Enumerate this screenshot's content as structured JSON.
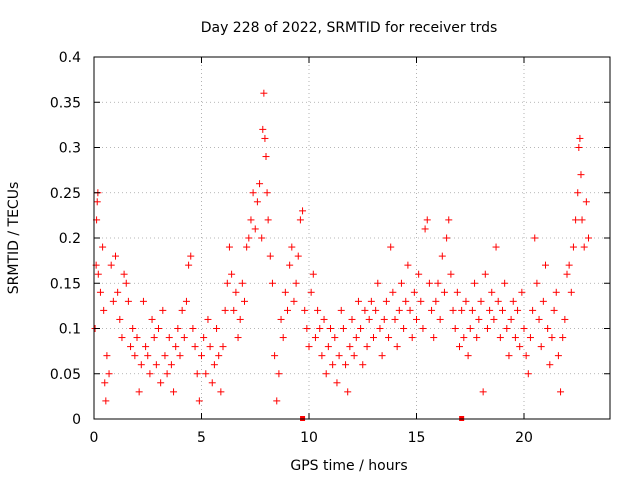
{
  "chart_data": {
    "type": "scatter",
    "title": "Day 228 of 2022, SRMTID for receiver trds",
    "xlabel": "GPS time / hours",
    "ylabel": "SRMTID / TECUs",
    "xlim": [
      0,
      24
    ],
    "ylim": [
      0,
      0.4
    ],
    "xticks": [
      0,
      5,
      10,
      15,
      20
    ],
    "xtick_labels": [
      "0",
      "5",
      "10",
      "15",
      "20"
    ],
    "yticks": [
      0,
      0.05,
      0.1,
      0.15,
      0.2,
      0.25,
      0.3,
      0.35,
      0.4
    ],
    "ytick_labels": [
      "0",
      "0.05",
      "0.1",
      "0.15",
      "0.2",
      "0.25",
      "0.3",
      "0.35",
      "0.4"
    ],
    "grid": true,
    "marker": "+",
    "marker_color": "#ff0000",
    "series": [
      {
        "name": "trds",
        "points": [
          [
            0.05,
            0.1
          ],
          [
            0.1,
            0.17
          ],
          [
            0.12,
            0.22
          ],
          [
            0.15,
            0.24
          ],
          [
            0.18,
            0.25
          ],
          [
            0.2,
            0.16
          ],
          [
            0.3,
            0.14
          ],
          [
            0.4,
            0.19
          ],
          [
            0.45,
            0.12
          ],
          [
            0.5,
            0.04
          ],
          [
            0.55,
            0.02
          ],
          [
            0.6,
            0.07
          ],
          [
            0.7,
            0.05
          ],
          [
            0.8,
            0.17
          ],
          [
            0.9,
            0.13
          ],
          [
            1.0,
            0.18
          ],
          [
            1.1,
            0.14
          ],
          [
            1.2,
            0.11
          ],
          [
            1.3,
            0.09
          ],
          [
            1.4,
            0.16
          ],
          [
            1.5,
            0.15
          ],
          [
            1.6,
            0.13
          ],
          [
            1.7,
            0.08
          ],
          [
            1.8,
            0.1
          ],
          [
            1.9,
            0.07
          ],
          [
            2.0,
            0.09
          ],
          [
            2.1,
            0.03
          ],
          [
            2.2,
            0.06
          ],
          [
            2.3,
            0.13
          ],
          [
            2.4,
            0.08
          ],
          [
            2.5,
            0.07
          ],
          [
            2.6,
            0.05
          ],
          [
            2.7,
            0.11
          ],
          [
            2.8,
            0.09
          ],
          [
            2.9,
            0.06
          ],
          [
            3.0,
            0.1
          ],
          [
            3.1,
            0.04
          ],
          [
            3.2,
            0.12
          ],
          [
            3.3,
            0.07
          ],
          [
            3.4,
            0.05
          ],
          [
            3.5,
            0.09
          ],
          [
            3.6,
            0.06
          ],
          [
            3.7,
            0.03
          ],
          [
            3.8,
            0.08
          ],
          [
            3.9,
            0.1
          ],
          [
            4.0,
            0.07
          ],
          [
            4.1,
            0.12
          ],
          [
            4.2,
            0.09
          ],
          [
            4.3,
            0.13
          ],
          [
            4.4,
            0.17
          ],
          [
            4.5,
            0.18
          ],
          [
            4.6,
            0.1
          ],
          [
            4.7,
            0.08
          ],
          [
            4.8,
            0.05
          ],
          [
            4.9,
            0.02
          ],
          [
            5.0,
            0.07
          ],
          [
            5.1,
            0.09
          ],
          [
            5.2,
            0.05
          ],
          [
            5.3,
            0.11
          ],
          [
            5.4,
            0.08
          ],
          [
            5.5,
            0.04
          ],
          [
            5.6,
            0.06
          ],
          [
            5.7,
            0.1
          ],
          [
            5.8,
            0.07
          ],
          [
            5.9,
            0.03
          ],
          [
            6.0,
            0.08
          ],
          [
            6.1,
            0.12
          ],
          [
            6.2,
            0.15
          ],
          [
            6.3,
            0.19
          ],
          [
            6.4,
            0.16
          ],
          [
            6.5,
            0.12
          ],
          [
            6.6,
            0.14
          ],
          [
            6.7,
            0.09
          ],
          [
            6.8,
            0.11
          ],
          [
            6.9,
            0.15
          ],
          [
            7.0,
            0.13
          ],
          [
            7.1,
            0.19
          ],
          [
            7.2,
            0.2
          ],
          [
            7.3,
            0.22
          ],
          [
            7.4,
            0.25
          ],
          [
            7.5,
            0.21
          ],
          [
            7.6,
            0.24
          ],
          [
            7.7,
            0.26
          ],
          [
            7.8,
            0.2
          ],
          [
            7.85,
            0.32
          ],
          [
            7.9,
            0.36
          ],
          [
            7.95,
            0.31
          ],
          [
            8.0,
            0.29
          ],
          [
            8.05,
            0.25
          ],
          [
            8.1,
            0.22
          ],
          [
            8.2,
            0.18
          ],
          [
            8.3,
            0.15
          ],
          [
            8.4,
            0.07
          ],
          [
            8.5,
            0.02
          ],
          [
            8.6,
            0.05
          ],
          [
            8.7,
            0.11
          ],
          [
            8.8,
            0.09
          ],
          [
            8.9,
            0.14
          ],
          [
            9.0,
            0.12
          ],
          [
            9.1,
            0.17
          ],
          [
            9.2,
            0.19
          ],
          [
            9.3,
            0.13
          ],
          [
            9.4,
            0.15
          ],
          [
            9.5,
            0.18
          ],
          [
            9.6,
            0.22
          ],
          [
            9.7,
            0.23
          ],
          [
            9.8,
            0.12
          ],
          [
            9.9,
            0.1
          ],
          [
            10.0,
            0.08
          ],
          [
            10.1,
            0.14
          ],
          [
            10.2,
            0.16
          ],
          [
            10.3,
            0.09
          ],
          [
            10.4,
            0.12
          ],
          [
            10.5,
            0.1
          ],
          [
            10.6,
            0.07
          ],
          [
            10.7,
            0.11
          ],
          [
            10.8,
            0.05
          ],
          [
            10.9,
            0.08
          ],
          [
            11.0,
            0.1
          ],
          [
            11.1,
            0.06
          ],
          [
            11.2,
            0.09
          ],
          [
            11.3,
            0.04
          ],
          [
            11.4,
            0.07
          ],
          [
            11.5,
            0.12
          ],
          [
            11.6,
            0.1
          ],
          [
            11.7,
            0.06
          ],
          [
            11.8,
            0.03
          ],
          [
            11.9,
            0.08
          ],
          [
            12.0,
            0.11
          ],
          [
            12.1,
            0.07
          ],
          [
            12.2,
            0.09
          ],
          [
            12.3,
            0.13
          ],
          [
            12.4,
            0.1
          ],
          [
            12.5,
            0.06
          ],
          [
            12.6,
            0.12
          ],
          [
            12.7,
            0.08
          ],
          [
            12.8,
            0.11
          ],
          [
            12.9,
            0.13
          ],
          [
            13.0,
            0.09
          ],
          [
            13.1,
            0.12
          ],
          [
            13.2,
            0.15
          ],
          [
            13.3,
            0.1
          ],
          [
            13.4,
            0.07
          ],
          [
            13.5,
            0.11
          ],
          [
            13.6,
            0.13
          ],
          [
            13.7,
            0.09
          ],
          [
            13.8,
            0.19
          ],
          [
            13.9,
            0.14
          ],
          [
            14.0,
            0.11
          ],
          [
            14.1,
            0.08
          ],
          [
            14.2,
            0.12
          ],
          [
            14.3,
            0.15
          ],
          [
            14.4,
            0.1
          ],
          [
            14.5,
            0.13
          ],
          [
            14.6,
            0.17
          ],
          [
            14.7,
            0.12
          ],
          [
            14.8,
            0.09
          ],
          [
            14.9,
            0.14
          ],
          [
            15.0,
            0.11
          ],
          [
            15.1,
            0.16
          ],
          [
            15.2,
            0.13
          ],
          [
            15.3,
            0.1
          ],
          [
            15.4,
            0.21
          ],
          [
            15.5,
            0.22
          ],
          [
            15.6,
            0.15
          ],
          [
            15.7,
            0.12
          ],
          [
            15.8,
            0.09
          ],
          [
            15.9,
            0.13
          ],
          [
            16.0,
            0.15
          ],
          [
            16.1,
            0.11
          ],
          [
            16.2,
            0.18
          ],
          [
            16.3,
            0.14
          ],
          [
            16.4,
            0.2
          ],
          [
            16.5,
            0.22
          ],
          [
            16.6,
            0.16
          ],
          [
            16.7,
            0.12
          ],
          [
            16.8,
            0.1
          ],
          [
            16.9,
            0.14
          ],
          [
            17.0,
            0.08
          ],
          [
            17.1,
            0.12
          ],
          [
            17.2,
            0.09
          ],
          [
            17.3,
            0.13
          ],
          [
            17.4,
            0.07
          ],
          [
            17.5,
            0.1
          ],
          [
            17.6,
            0.12
          ],
          [
            17.7,
            0.15
          ],
          [
            17.8,
            0.09
          ],
          [
            17.9,
            0.11
          ],
          [
            18.0,
            0.13
          ],
          [
            18.1,
            0.03
          ],
          [
            18.2,
            0.16
          ],
          [
            18.3,
            0.1
          ],
          [
            18.4,
            0.12
          ],
          [
            18.5,
            0.14
          ],
          [
            18.6,
            0.11
          ],
          [
            18.7,
            0.19
          ],
          [
            18.8,
            0.13
          ],
          [
            18.9,
            0.09
          ],
          [
            19.0,
            0.12
          ],
          [
            19.1,
            0.15
          ],
          [
            19.2,
            0.1
          ],
          [
            19.3,
            0.07
          ],
          [
            19.4,
            0.11
          ],
          [
            19.5,
            0.13
          ],
          [
            19.6,
            0.09
          ],
          [
            19.7,
            0.12
          ],
          [
            19.8,
            0.08
          ],
          [
            19.9,
            0.14
          ],
          [
            20.0,
            0.1
          ],
          [
            20.1,
            0.07
          ],
          [
            20.2,
            0.05
          ],
          [
            20.3,
            0.09
          ],
          [
            20.4,
            0.12
          ],
          [
            20.5,
            0.2
          ],
          [
            20.6,
            0.15
          ],
          [
            20.7,
            0.11
          ],
          [
            20.8,
            0.08
          ],
          [
            20.9,
            0.13
          ],
          [
            21.0,
            0.17
          ],
          [
            21.1,
            0.1
          ],
          [
            21.2,
            0.06
          ],
          [
            21.3,
            0.09
          ],
          [
            21.4,
            0.12
          ],
          [
            21.5,
            0.14
          ],
          [
            21.6,
            0.07
          ],
          [
            21.7,
            0.03
          ],
          [
            21.8,
            0.09
          ],
          [
            21.9,
            0.11
          ],
          [
            22.0,
            0.16
          ],
          [
            22.1,
            0.17
          ],
          [
            22.2,
            0.14
          ],
          [
            22.3,
            0.19
          ],
          [
            22.4,
            0.22
          ],
          [
            22.5,
            0.25
          ],
          [
            22.55,
            0.3
          ],
          [
            22.6,
            0.31
          ],
          [
            22.65,
            0.27
          ],
          [
            22.7,
            0.22
          ],
          [
            22.8,
            0.19
          ],
          [
            22.9,
            0.24
          ],
          [
            23.0,
            0.2
          ]
        ],
        "baseline_marks": [
          [
            9.7,
            0.0
          ],
          [
            17.1,
            0.0
          ]
        ]
      }
    ]
  },
  "colors": {
    "marker": "#ff0000",
    "grid": "#a0a0a0",
    "axis": "#000000"
  }
}
